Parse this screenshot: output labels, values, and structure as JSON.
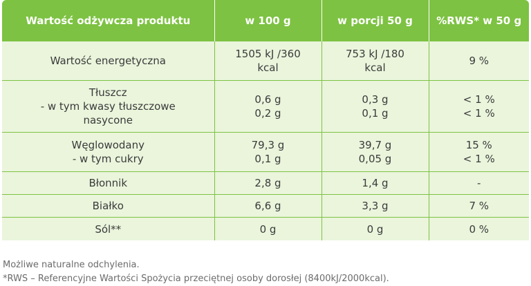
{
  "table": {
    "headers": [
      "Wartość odżywcza produktu",
      "w 100 g",
      "w porcji 50 g",
      "%RWS* w 50 g"
    ],
    "rows": [
      {
        "name": [
          "Wartość energetyczna"
        ],
        "per100": [
          "1505 kJ /360",
          "kcal"
        ],
        "portion": [
          "753 kJ /180",
          "kcal"
        ],
        "rws": [
          "9 %"
        ]
      },
      {
        "name": [
          "Tłuszcz",
          "- w tym kwasy tłuszczowe",
          "nasycone"
        ],
        "per100": [
          "0,6 g",
          "0,2 g"
        ],
        "portion": [
          "0,3 g",
          "0,1 g"
        ],
        "rws": [
          "< 1 %",
          "< 1 %"
        ]
      },
      {
        "name": [
          "Węglowodany",
          "- w tym cukry"
        ],
        "per100": [
          "79,3 g",
          "0,1 g"
        ],
        "portion": [
          "39,7 g",
          "0,05 g"
        ],
        "rws": [
          "15 %",
          "< 1 %"
        ]
      },
      {
        "name": [
          "Błonnik"
        ],
        "per100": [
          "2,8 g"
        ],
        "portion": [
          "1,4 g"
        ],
        "rws": [
          "-"
        ]
      },
      {
        "name": [
          "Białko"
        ],
        "per100": [
          "6,6 g"
        ],
        "portion": [
          "3,3 g"
        ],
        "rws": [
          "7 %"
        ]
      },
      {
        "name": [
          "Sól**"
        ],
        "per100": [
          "0 g"
        ],
        "portion": [
          "0 g"
        ],
        "rws": [
          "0 %"
        ]
      }
    ]
  },
  "notes": [
    "Możliwe naturalne odchylenia.",
    "*RWS – Referencyjne Wartości Spożycia przeciętnej osoby dorosłej (8400kJ/2000kcal)."
  ],
  "colors": {
    "header_bg": "#7dc242",
    "cell_bg": "#eaf5dc",
    "text": "#3b3b3b"
  }
}
